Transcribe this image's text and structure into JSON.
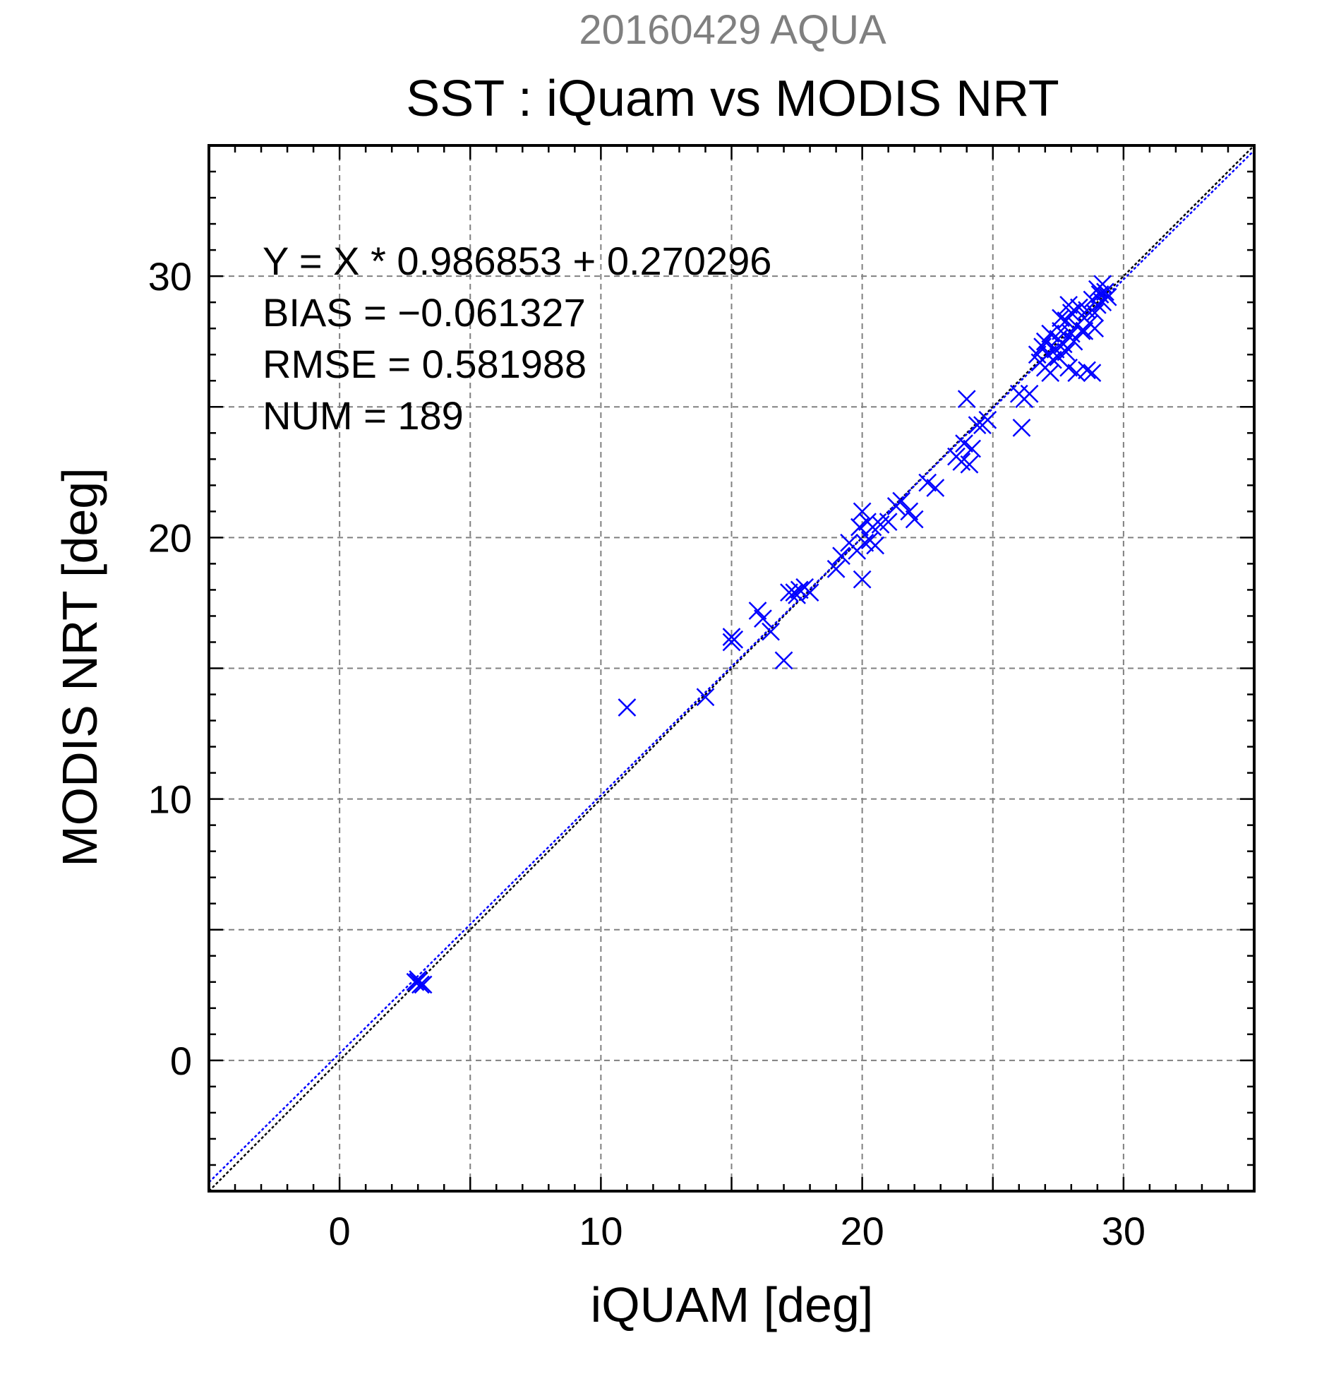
{
  "chart_data": {
    "type": "scatter",
    "supertitle": "20160429 AQUA",
    "title": "SST : iQuam vs MODIS NRT",
    "xlabel": "iQUAM [deg]",
    "ylabel": "MODIS NRT [deg]",
    "xlim": [
      -5,
      35
    ],
    "ylim": [
      -5,
      35
    ],
    "xticks": [
      0,
      10,
      20,
      30
    ],
    "yticks": [
      0,
      10,
      20,
      30
    ],
    "grid": true,
    "stats": [
      "Y = X * 0.986853 + 0.270296",
      "BIAS = −0.061327",
      "RMSE = 0.581988",
      "NUM = 189"
    ],
    "fit": {
      "slope": 0.986853,
      "intercept": 0.270296
    },
    "marker": "x",
    "colors": {
      "points": "#0000ff",
      "fit_line": "#0000ff",
      "identity_line": "#000000",
      "supertitle": "#808080",
      "grid": "#808080"
    },
    "points": [
      [
        3.0,
        3.0
      ],
      [
        3.1,
        2.9
      ],
      [
        3.0,
        3.1
      ],
      [
        2.9,
        3.0
      ],
      [
        3.2,
        2.9
      ],
      [
        11.0,
        13.5
      ],
      [
        14.0,
        13.9
      ],
      [
        15.0,
        16.0
      ],
      [
        15.0,
        16.2
      ],
      [
        15.1,
        16.1
      ],
      [
        16.0,
        17.2
      ],
      [
        16.2,
        16.9
      ],
      [
        16.5,
        16.4
      ],
      [
        17.0,
        15.3
      ],
      [
        17.2,
        17.9
      ],
      [
        17.4,
        17.9
      ],
      [
        17.6,
        18.0
      ],
      [
        17.8,
        18.1
      ],
      [
        17.5,
        17.8
      ],
      [
        18.0,
        17.9
      ],
      [
        19.0,
        18.8
      ],
      [
        19.2,
        19.3
      ],
      [
        19.5,
        19.8
      ],
      [
        19.8,
        19.5
      ],
      [
        19.9,
        20.4
      ],
      [
        20.0,
        21.0
      ],
      [
        20.0,
        18.4
      ],
      [
        20.1,
        19.8
      ],
      [
        20.2,
        20.6
      ],
      [
        20.3,
        19.9
      ],
      [
        20.4,
        20.4
      ],
      [
        20.5,
        19.7
      ],
      [
        20.7,
        20.5
      ],
      [
        21.0,
        20.6
      ],
      [
        21.3,
        21.2
      ],
      [
        21.5,
        21.4
      ],
      [
        21.8,
        21.0
      ],
      [
        22.0,
        20.7
      ],
      [
        22.5,
        22.1
      ],
      [
        22.8,
        21.9
      ],
      [
        23.6,
        23.1
      ],
      [
        23.8,
        22.9
      ],
      [
        23.9,
        23.6
      ],
      [
        24.0,
        25.3
      ],
      [
        24.1,
        22.8
      ],
      [
        24.2,
        23.4
      ],
      [
        24.4,
        24.3
      ],
      [
        24.6,
        24.3
      ],
      [
        24.8,
        24.5
      ],
      [
        26.0,
        25.5
      ],
      [
        26.1,
        24.2
      ],
      [
        26.2,
        25.3
      ],
      [
        26.4,
        25.5
      ],
      [
        26.7,
        27.0
      ],
      [
        26.8,
        26.7
      ],
      [
        26.9,
        27.3
      ],
      [
        27.0,
        26.5
      ],
      [
        27.0,
        27.5
      ],
      [
        27.1,
        27.0
      ],
      [
        27.2,
        26.3
      ],
      [
        27.2,
        27.8
      ],
      [
        27.3,
        26.8
      ],
      [
        27.4,
        27.2
      ],
      [
        27.5,
        27.6
      ],
      [
        27.5,
        26.9
      ],
      [
        27.6,
        27.9
      ],
      [
        27.7,
        27.4
      ],
      [
        27.8,
        27.1
      ],
      [
        27.8,
        28.3
      ],
      [
        27.9,
        26.5
      ],
      [
        28.0,
        27.8
      ],
      [
        28.0,
        28.6
      ],
      [
        28.1,
        27.5
      ],
      [
        28.2,
        28.1
      ],
      [
        28.2,
        26.3
      ],
      [
        28.3,
        28.8
      ],
      [
        28.4,
        27.9
      ],
      [
        28.5,
        28.4
      ],
      [
        28.6,
        28.7
      ],
      [
        28.6,
        26.4
      ],
      [
        28.7,
        28.2
      ],
      [
        28.8,
        26.3
      ],
      [
        28.8,
        29.1
      ],
      [
        28.9,
        28.6
      ],
      [
        29.0,
        29.5
      ],
      [
        29.0,
        28.9
      ],
      [
        29.1,
        29.3
      ],
      [
        29.2,
        29.0
      ],
      [
        29.2,
        29.7
      ],
      [
        29.3,
        29.4
      ],
      [
        29.4,
        29.2
      ],
      [
        28.9,
        28.0
      ],
      [
        28.5,
        27.9
      ],
      [
        27.6,
        28.4
      ],
      [
        27.9,
        28.9
      ]
    ]
  }
}
